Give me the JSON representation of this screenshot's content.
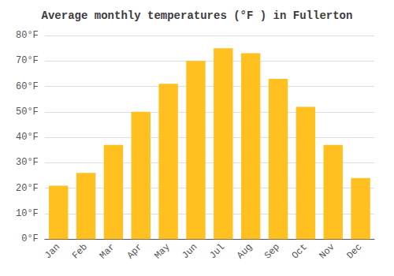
{
  "chart_data": {
    "type": "bar",
    "title": "Average monthly temperatures (°F ) in Fullerton",
    "categories": [
      "Jan",
      "Feb",
      "Mar",
      "Apr",
      "May",
      "Jun",
      "Jul",
      "Aug",
      "Sep",
      "Oct",
      "Nov",
      "Dec"
    ],
    "values": [
      21,
      26,
      37,
      50,
      61,
      70,
      75,
      73,
      63,
      52,
      37,
      24
    ],
    "color": "#FFC020",
    "ylim": [
      0,
      80
    ],
    "yticks": [
      {
        "value": 0,
        "label": "0°F"
      },
      {
        "value": 10,
        "label": "10°F"
      },
      {
        "value": 20,
        "label": "20°F"
      },
      {
        "value": 30,
        "label": "30°F"
      },
      {
        "value": 40,
        "label": "40°F"
      },
      {
        "value": 50,
        "label": "50°F"
      },
      {
        "value": 60,
        "label": "60°F"
      },
      {
        "value": 70,
        "label": "70°F"
      },
      {
        "value": 80,
        "label": "80°F"
      }
    ],
    "grid": true
  }
}
